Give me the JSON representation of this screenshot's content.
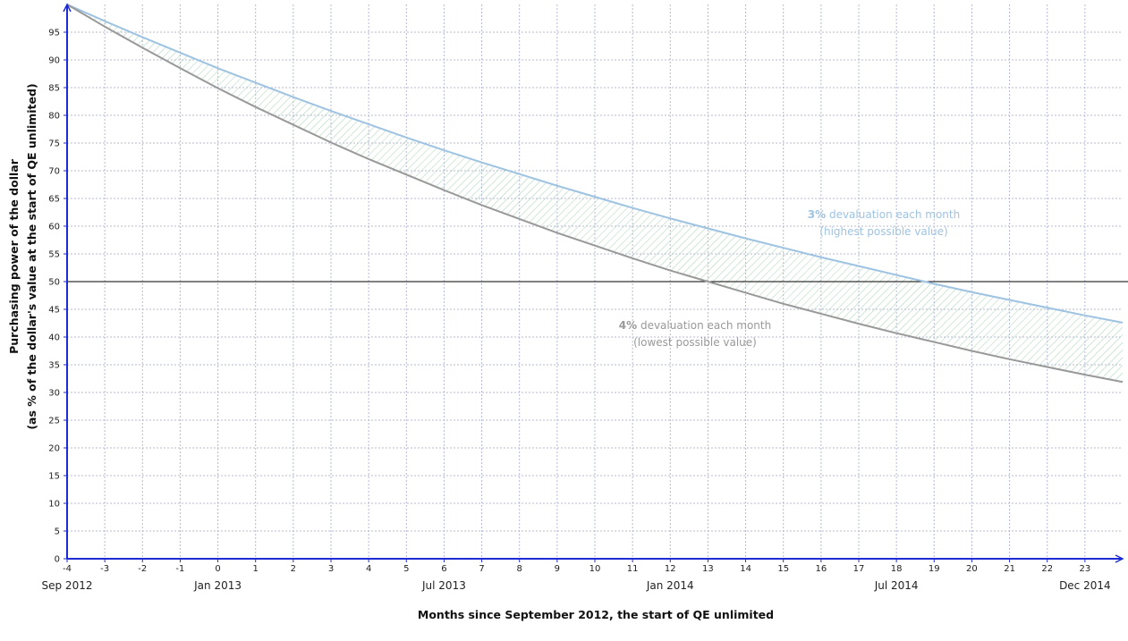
{
  "chart_data": {
    "type": "line",
    "xlabel": "Months since September 2012, the start of QE unlimited",
    "ylabel_line1": "Purchasing power of the dollar",
    "ylabel_line2": "(as % of the dollar's value at the start of QE unlimited)",
    "xlim": [
      -4,
      24
    ],
    "ylim": [
      0,
      100
    ],
    "x_ticks": [
      -4,
      -3,
      -2,
      -1,
      0,
      1,
      2,
      3,
      4,
      5,
      6,
      7,
      8,
      9,
      10,
      11,
      12,
      13,
      14,
      15,
      16,
      17,
      18,
      19,
      20,
      21,
      22,
      23
    ],
    "y_ticks": [
      0,
      5,
      10,
      15,
      20,
      25,
      30,
      35,
      40,
      45,
      50,
      55,
      60,
      65,
      70,
      75,
      80,
      85,
      90,
      95
    ],
    "date_ticks": [
      {
        "x": -4,
        "label": "Sep 2012"
      },
      {
        "x": 0,
        "label": "Jan 2013"
      },
      {
        "x": 6,
        "label": "Jul 2013"
      },
      {
        "x": 12,
        "label": "Jan 2014"
      },
      {
        "x": 18,
        "label": "Jul 2014"
      },
      {
        "x": 23,
        "label": "Dec 2014"
      }
    ],
    "grid": true,
    "reference_line": 50,
    "series": [
      {
        "color": "#9ec3e2",
        "x": [
          -4,
          -3,
          -2,
          -1,
          0,
          1,
          2,
          3,
          4,
          5,
          6,
          7,
          8,
          9,
          10,
          11,
          12,
          13,
          14,
          15,
          16,
          17,
          18,
          19,
          20,
          21,
          22,
          23,
          24
        ],
        "values": [
          100,
          97.0,
          94.1,
          91.3,
          88.5,
          85.9,
          83.3,
          80.8,
          78.4,
          76.0,
          73.7,
          71.5,
          69.4,
          67.3,
          65.3,
          63.3,
          61.4,
          59.6,
          57.8,
          56.1,
          54.4,
          52.8,
          51.2,
          49.6,
          48.1,
          46.7,
          45.3,
          43.9,
          42.6
        ],
        "annotation": {
          "bold": "3%",
          "text": " devaluation each month",
          "sub": "(highest possible value)"
        }
      },
      {
        "color": "#999999",
        "x": [
          -4,
          -3,
          -2,
          -1,
          0,
          1,
          2,
          3,
          4,
          5,
          6,
          7,
          8,
          9,
          10,
          11,
          12,
          13,
          14,
          15,
          16,
          17,
          18,
          19,
          20,
          21,
          22,
          23,
          24
        ],
        "values": [
          100,
          96.0,
          92.2,
          88.5,
          84.9,
          81.5,
          78.3,
          75.1,
          72.1,
          69.3,
          66.5,
          63.8,
          61.3,
          58.8,
          56.5,
          54.2,
          52.0,
          50.0,
          48.0,
          46.0,
          44.2,
          42.4,
          40.7,
          39.1,
          37.5,
          36.0,
          34.6,
          33.2,
          31.9
        ],
        "annotation": {
          "bold": "4%",
          "text": " devaluation each month",
          "sub": "(lowest possible value)"
        }
      }
    ]
  }
}
